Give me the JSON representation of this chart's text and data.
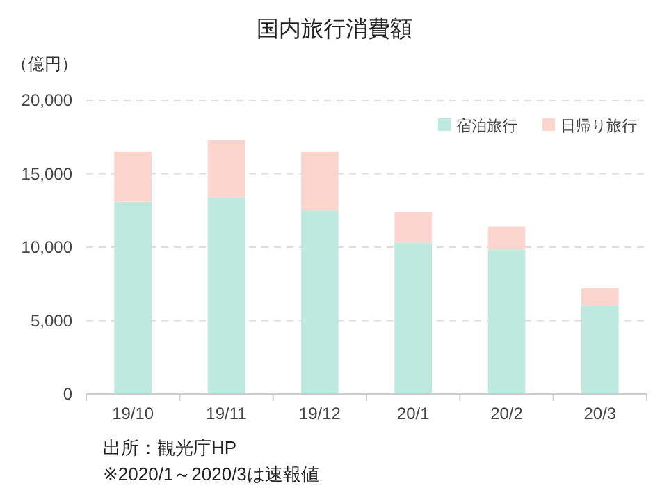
{
  "chart_data": {
    "type": "bar",
    "title": "国内旅行消費額",
    "ylabel": "（億円）",
    "categories": [
      "19/10",
      "19/11",
      "19/12",
      "20/1",
      "20/2",
      "20/3"
    ],
    "series": [
      {
        "name": "宿泊旅行",
        "color": "#bde9de",
        "values": [
          13100,
          13400,
          12500,
          10300,
          9800,
          6000
        ]
      },
      {
        "name": "日帰り旅行",
        "color": "#fcd5ce",
        "values": [
          3400,
          3900,
          4000,
          2100,
          1600,
          1200
        ]
      }
    ],
    "stacked": true,
    "ylim": [
      0,
      20000
    ],
    "yticks": [
      {
        "value": 0,
        "label": "0"
      },
      {
        "value": 5000,
        "label": "5,000"
      },
      {
        "value": 10000,
        "label": "10,000"
      },
      {
        "value": 15000,
        "label": "15,000"
      },
      {
        "value": 20000,
        "label": "20,000"
      }
    ],
    "grid": "y",
    "legend": "top right",
    "annotations": [
      "出所：観光庁HP",
      "※2020/1～2020/3は速報値"
    ]
  }
}
